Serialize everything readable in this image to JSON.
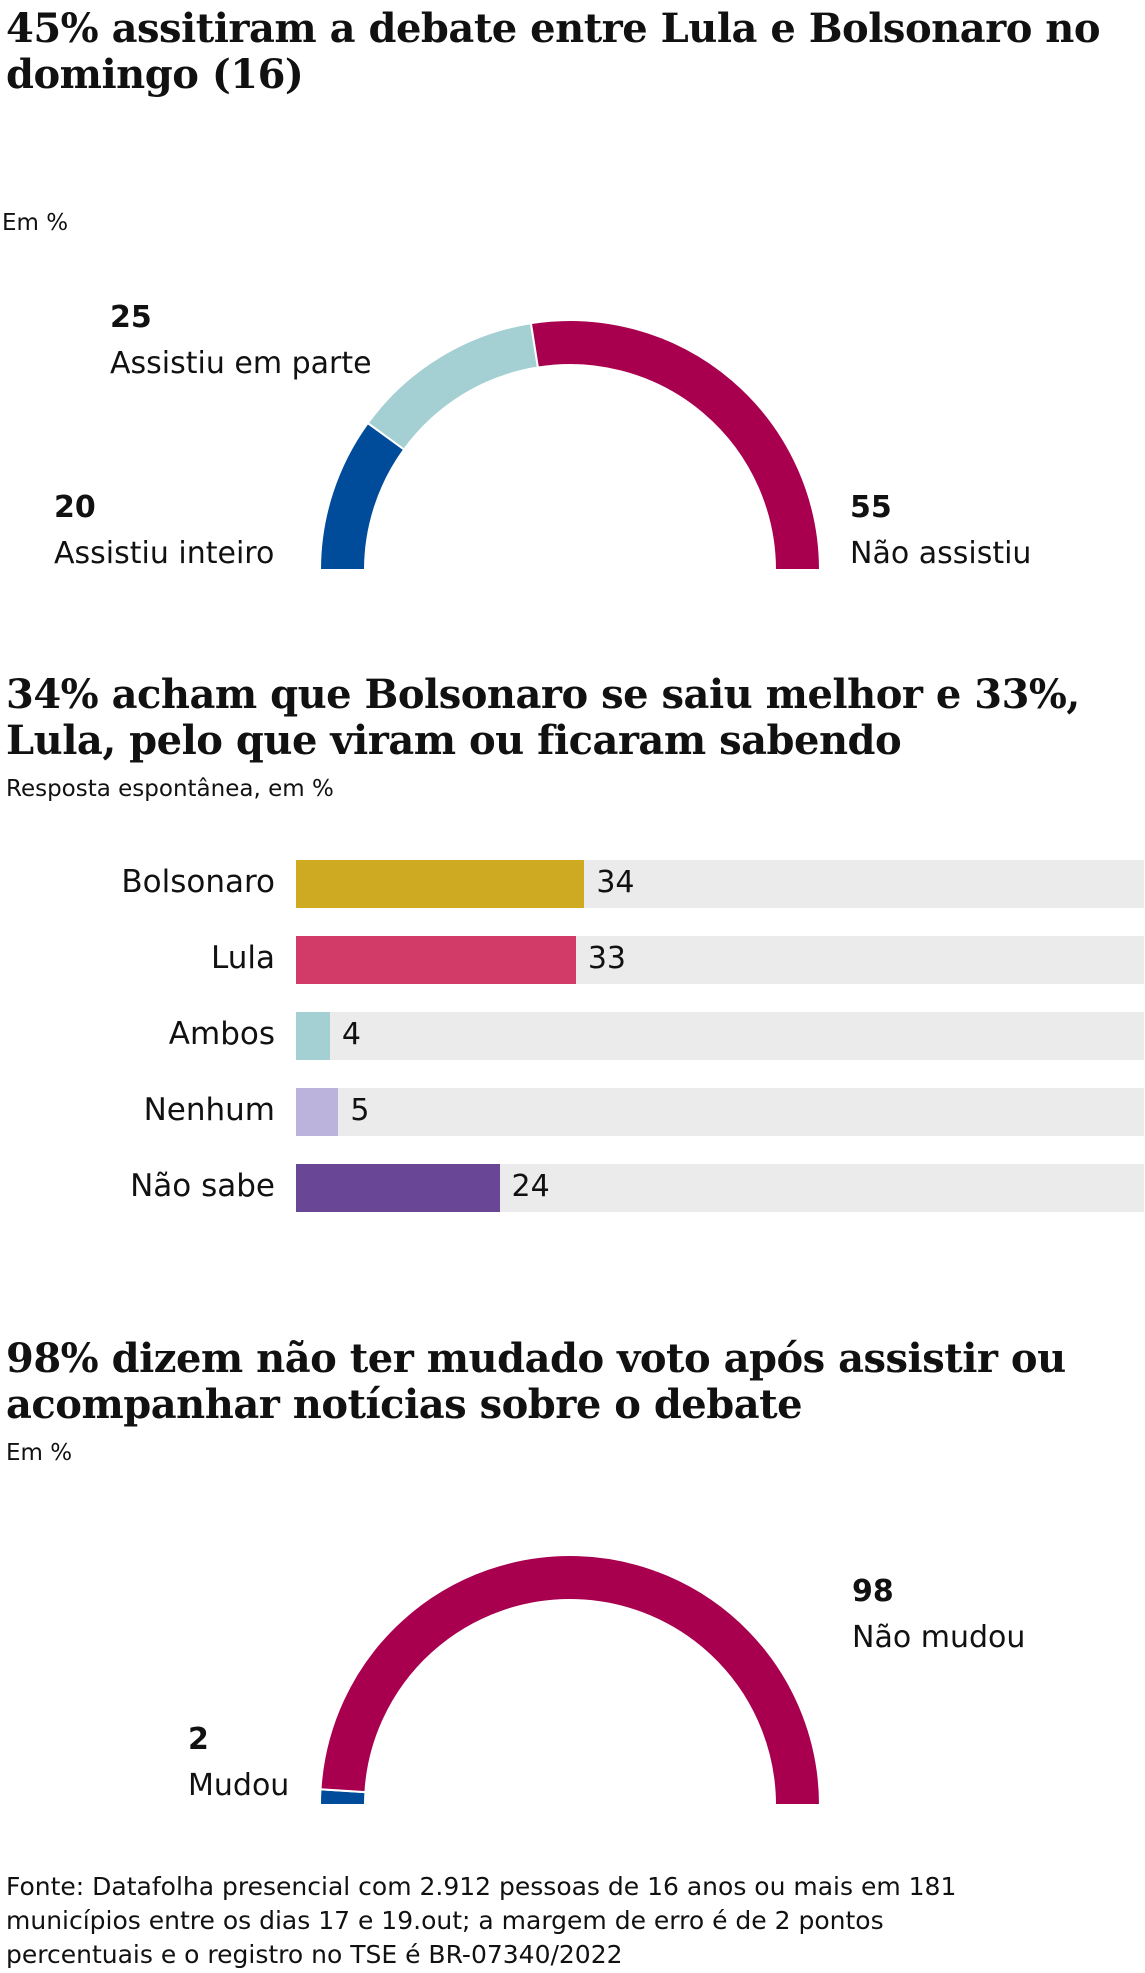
{
  "colors": {
    "dark_blue": "#004C9B",
    "light_teal": "#A5D0D3",
    "crimson": "#A8004F",
    "mustard": "#CEAA22",
    "pink": "#D23B67",
    "lavender": "#BCB3DC",
    "purple": "#6A4796",
    "track": "#EBEBEB"
  },
  "section1": {
    "title": "45% assitiram a debate entre Lula e Bolsonaro no domingo (16)",
    "unit": "Em %"
  },
  "section2": {
    "title": "34% acham que Bolsonaro se saiu melhor e 33%, Lula, pelo que viram ou ficaram sabendo",
    "unit": "Resposta espontânea, em %"
  },
  "section3": {
    "title": "98% dizem não ter mudado voto após assistir ou acompanhar notícias sobre o debate",
    "unit": "Em %"
  },
  "source": "Fonte: Datafolha presencial com 2.912 pessoas de 16 anos ou mais em 181 municípios entre os dias 17 e 19.out; a margem de erro é de 2 pontos percentuais e o registro no TSE é BR-07340/2022",
  "chart_data": [
    {
      "type": "pie",
      "title": "45% assitiram a debate entre Lula e Bolsonaro no domingo (16)",
      "unit": "Em %",
      "style": "semicircle-donut",
      "slices": [
        {
          "label": "Assistiu inteiro",
          "value": 20,
          "color": "#004C9B"
        },
        {
          "label": "Assistiu em parte",
          "value": 25,
          "color": "#A5D0D3"
        },
        {
          "label": "Não assistiu",
          "value": 55,
          "color": "#A8004F"
        }
      ]
    },
    {
      "type": "bar",
      "orientation": "horizontal",
      "title": "34% acham que Bolsonaro se saiu melhor e 33%, Lula, pelo que viram ou ficaram sabendo",
      "unit": "Resposta espontânea, em %",
      "categories": [
        "Bolsonaro",
        "Lula",
        "Ambos",
        "Nenhum",
        "Não sabe"
      ],
      "values": [
        34,
        33,
        4,
        5,
        24
      ],
      "colors": [
        "#CEAA22",
        "#D23B67",
        "#A5D0D3",
        "#BCB3DC",
        "#6A4796"
      ],
      "xlim": [
        0,
        100
      ]
    },
    {
      "type": "pie",
      "title": "98% dizem não ter mudado voto após assistir ou acompanhar notícias sobre o debate",
      "unit": "Em %",
      "style": "semicircle-donut",
      "slices": [
        {
          "label": "Mudou",
          "value": 2,
          "color": "#004C9B"
        },
        {
          "label": "Não mudou",
          "value": 98,
          "color": "#A8004F"
        }
      ]
    }
  ]
}
